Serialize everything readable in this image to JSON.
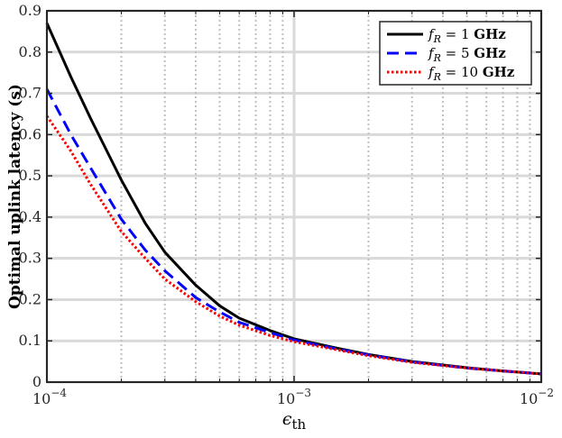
{
  "chart_data": {
    "type": "line",
    "xscale": "log",
    "xlim": [
      0.0001,
      0.01
    ],
    "ylim": [
      0,
      0.9
    ],
    "xlabel": "ϵth",
    "xlabel_parts": {
      "base": "ϵ",
      "sub": "th"
    },
    "ylabel": "Optimal uplink latency (s)",
    "grid": true,
    "legend_position": "top-right",
    "x_ticks": [
      {
        "value": 0.0001,
        "base": "10",
        "exp": "−4"
      },
      {
        "value": 0.001,
        "base": "10",
        "exp": "−3"
      },
      {
        "value": 0.01,
        "base": "10",
        "exp": "−2"
      }
    ],
    "y_ticks": [
      {
        "value": 0,
        "label": "0"
      },
      {
        "value": 0.1,
        "label": "0.1"
      },
      {
        "value": 0.2,
        "label": "0.2"
      },
      {
        "value": 0.3,
        "label": "0.3"
      },
      {
        "value": 0.4,
        "label": "0.4"
      },
      {
        "value": 0.5,
        "label": "0.5"
      },
      {
        "value": 0.6,
        "label": "0.6"
      },
      {
        "value": 0.7,
        "label": "0.7"
      },
      {
        "value": 0.8,
        "label": "0.8"
      },
      {
        "value": 0.9,
        "label": "0.9"
      }
    ],
    "series": [
      {
        "name": "fR = 1 GHz",
        "label_parts": {
          "var": "f",
          "sub": "R",
          "eq": " = 1 ",
          "unit": "GHz"
        },
        "color": "#000000",
        "dash": "solid",
        "x": [
          0.0001,
          0.000125,
          0.00015,
          0.0002,
          0.00025,
          0.0003,
          0.0004,
          0.0005,
          0.0006,
          0.0008,
          0.001,
          0.0015,
          0.002,
          0.003,
          0.005,
          0.007,
          0.01
        ],
        "y": [
          0.87,
          0.74,
          0.64,
          0.49,
          0.385,
          0.315,
          0.235,
          0.185,
          0.155,
          0.125,
          0.105,
          0.082,
          0.067,
          0.05,
          0.035,
          0.027,
          0.02
        ]
      },
      {
        "name": "fR = 5 GHz",
        "label_parts": {
          "var": "f",
          "sub": "R",
          "eq": " = 5 ",
          "unit": "GHz"
        },
        "color": "#0000ff",
        "dash": "dashed",
        "x": [
          0.0001,
          0.000125,
          0.00015,
          0.0002,
          0.00025,
          0.0003,
          0.0004,
          0.0005,
          0.0006,
          0.0008,
          0.001,
          0.0015,
          0.002,
          0.003,
          0.005,
          0.007,
          0.01
        ],
        "y": [
          0.71,
          0.6,
          0.52,
          0.395,
          0.32,
          0.27,
          0.205,
          0.17,
          0.145,
          0.12,
          0.102,
          0.08,
          0.066,
          0.049,
          0.034,
          0.027,
          0.02
        ]
      },
      {
        "name": "fR = 10 GHz",
        "label_parts": {
          "var": "f",
          "sub": "R",
          "eq": " = 10 ",
          "unit": "GHz"
        },
        "color": "#ff0000",
        "dash": "dotted",
        "x": [
          0.0001,
          0.000125,
          0.00015,
          0.0002,
          0.00025,
          0.0003,
          0.0004,
          0.0005,
          0.0006,
          0.0008,
          0.001,
          0.0015,
          0.002,
          0.003,
          0.005,
          0.007,
          0.01
        ],
        "y": [
          0.645,
          0.56,
          0.48,
          0.365,
          0.3,
          0.25,
          0.195,
          0.16,
          0.138,
          0.113,
          0.098,
          0.078,
          0.064,
          0.048,
          0.034,
          0.027,
          0.02
        ]
      }
    ]
  }
}
